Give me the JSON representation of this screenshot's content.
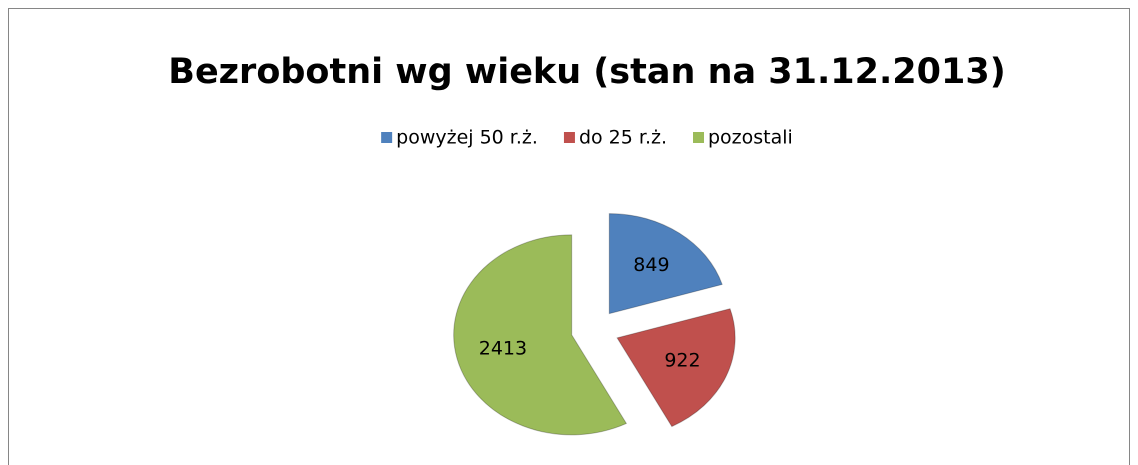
{
  "chart_data": {
    "type": "pie",
    "title": "Bezrobotni wg wieku (stan na 31.12.2013)",
    "categories": [
      "powyżej 50 r.ż.",
      "do 25 r.ż.",
      "pozostali"
    ],
    "values": [
      849,
      922,
      2413
    ],
    "colors": [
      "#4f81bd",
      "#c0504d",
      "#9bbb59"
    ],
    "legend": "top"
  }
}
